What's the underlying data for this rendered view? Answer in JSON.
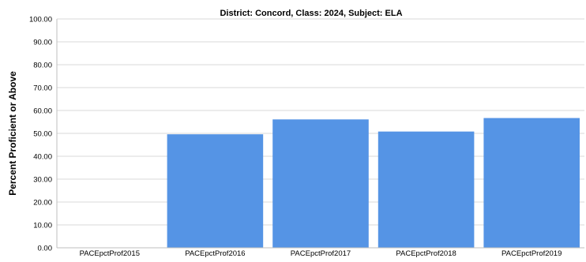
{
  "chart_data": {
    "type": "bar",
    "title": "District: Concord, Class: 2024, Subject: ELA",
    "xlabel": "",
    "ylabel": "Percent Proficient or Above",
    "categories": [
      "PACEpctProf2015",
      "PACEpctProf2016",
      "PACEpctProf2017",
      "PACEpctProf2018",
      "PACEpctProf2019"
    ],
    "values": [
      null,
      49.6,
      56.1,
      50.8,
      56.7
    ],
    "ylim": [
      0,
      100
    ],
    "yticks": [
      "0.00",
      "10.00",
      "20.00",
      "30.00",
      "40.00",
      "50.00",
      "60.00",
      "70.00",
      "80.00",
      "90.00",
      "100.00"
    ],
    "grid": true,
    "bar_color": "#5594e5",
    "grid_color": "#d9d9d9",
    "legend": "none"
  }
}
